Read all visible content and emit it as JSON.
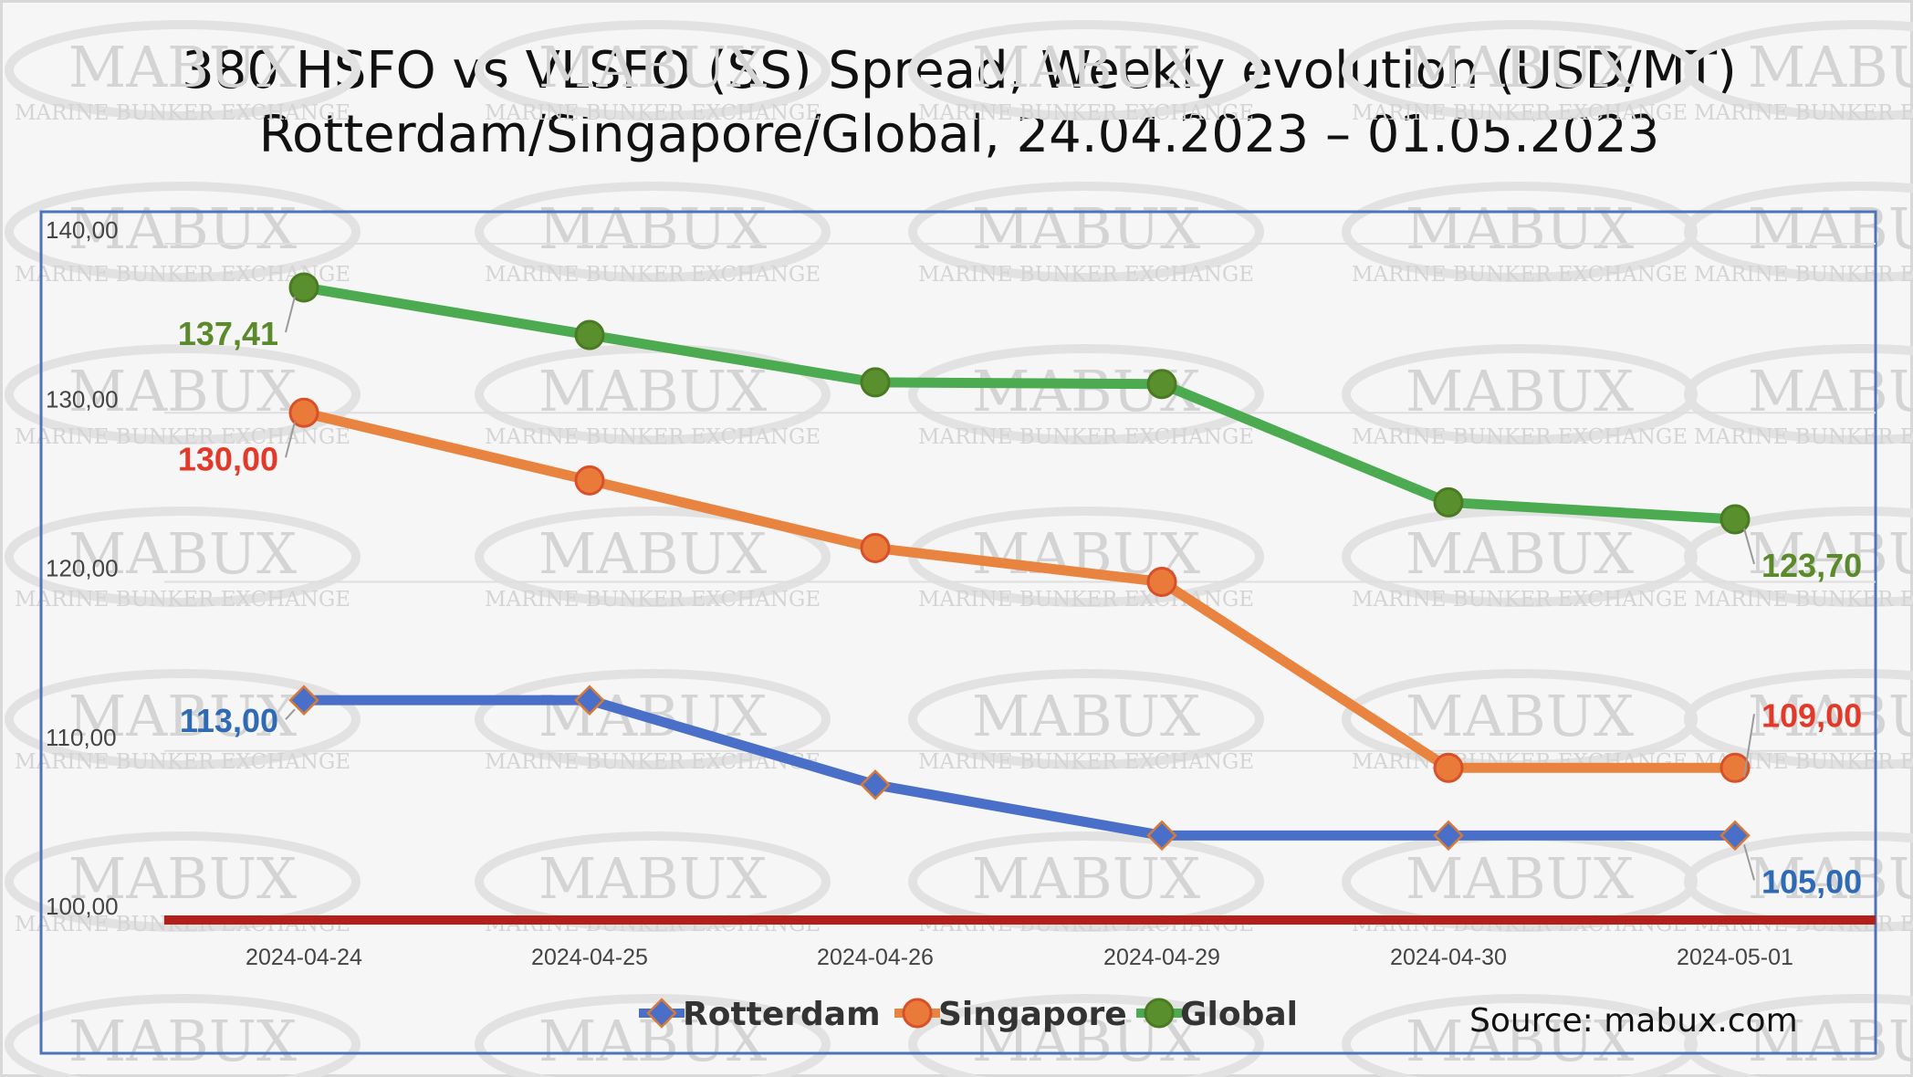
{
  "watermark": {
    "brand": "MABUX",
    "tagline": "MARINE BUNKER EXCHANGE"
  },
  "source_text": "Source: mabux.com",
  "chart_data": {
    "type": "line",
    "title": "380 HSFO vs VLSFO (SS) Spread, Weekly evolution (USD/MT)",
    "subtitle": "Rotterdam/Singapore/Global, 24.04.2023 – 01.05.2023",
    "categories": [
      "2024-04-24",
      "2024-04-25",
      "2024-04-26",
      "2024-04-29",
      "2024-04-30",
      "2024-05-01"
    ],
    "ylim": [
      100,
      140
    ],
    "yticks": [
      "100,00",
      "110,00",
      "120,00",
      "130,00",
      "140,00"
    ],
    "grid": true,
    "legend_position": "bottom",
    "baseline": {
      "value": 100,
      "color": "#b3201c"
    },
    "series": [
      {
        "name": "Rotterdam",
        "color": "#4a6fc8",
        "marker": "diamond",
        "values": [
          113,
          113,
          108,
          105,
          105,
          105
        ],
        "labels": [
          {
            "index": 0,
            "text": "113,00",
            "color": "#2f6ab5"
          },
          {
            "index": 5,
            "text": "105,00",
            "color": "#2f6ab5"
          }
        ]
      },
      {
        "name": "Singapore",
        "color": "#e8843f",
        "marker": "circle",
        "values": [
          130,
          126,
          122,
          120,
          109,
          109
        ],
        "labels": [
          {
            "index": 0,
            "text": "130,00",
            "color": "#e23a2a"
          },
          {
            "index": 5,
            "text": "109,00",
            "color": "#e23a2a"
          }
        ]
      },
      {
        "name": "Global",
        "color": "#4cab50",
        "marker": "circle",
        "values": [
          137.41,
          134.6,
          131.8,
          131.7,
          124.7,
          123.7
        ],
        "labels": [
          {
            "index": 0,
            "text": "137,41",
            "color": "#5a8a2c"
          },
          {
            "index": 5,
            "text": "123,70",
            "color": "#5a8a2c"
          }
        ]
      }
    ]
  }
}
